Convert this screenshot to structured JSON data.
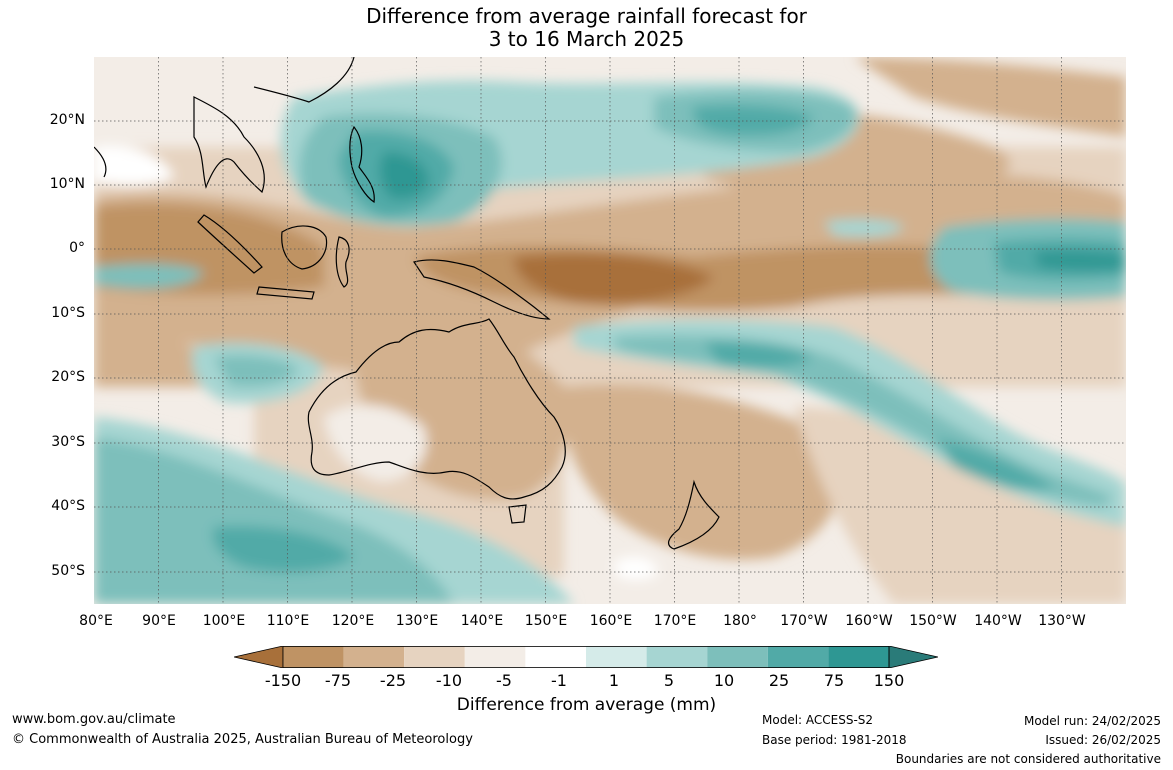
{
  "title": {
    "line1": "Difference from average rainfall forecast for",
    "line2": "3 to 16 March 2025"
  },
  "map": {
    "lat_labels": [
      "20°N",
      "10°N",
      "0°",
      "10°S",
      "20°S",
      "30°S",
      "40°S",
      "50°S"
    ],
    "lon_labels": [
      "80°E",
      "90°E",
      "100°E",
      "110°E",
      "120°E",
      "130°E",
      "140°E",
      "150°E",
      "160°E",
      "170°E",
      "180°",
      "170°W",
      "160°W",
      "150°W",
      "140°W",
      "130°W"
    ],
    "colors": {
      "brown_150": "#a8703a",
      "brown_75": "#bf9364",
      "brown_25": "#d3b18e",
      "brown_10": "#e6d3c0",
      "brown_5": "#f3ede7",
      "white": "#ffffff",
      "teal_1": "#d5ebe9",
      "teal_5": "#a6d5d2",
      "teal_10": "#7dbfbb",
      "teal_25": "#51aaa7",
      "teal_75": "#2e9793",
      "teal_150": "#2a7b79"
    }
  },
  "colorbar": {
    "ticks": [
      "-150",
      "-75",
      "-25",
      "-10",
      "-5",
      "-1",
      "1",
      "5",
      "10",
      "25",
      "75",
      "150"
    ],
    "colors": [
      "#a8703a",
      "#bf9364",
      "#d3b18e",
      "#e6d3c0",
      "#f3ede7",
      "#ffffff",
      "#d5ebe9",
      "#a6d5d2",
      "#7dbfbb",
      "#51aaa7",
      "#2e9793",
      "#2a7b79"
    ],
    "label": "Difference from average (mm)"
  },
  "footer": {
    "website": "www.bom.gov.au/climate",
    "copyright": "© Commonwealth of Australia 2025, Australian Bureau of Meteorology",
    "model": "Model: ACCESS-S2",
    "base_period": "Base period: 1981-2018",
    "model_run": "Model run: 24/02/2025",
    "issued": "Issued: 26/02/2025",
    "disclaimer": "Boundaries are not considered authoritative"
  }
}
